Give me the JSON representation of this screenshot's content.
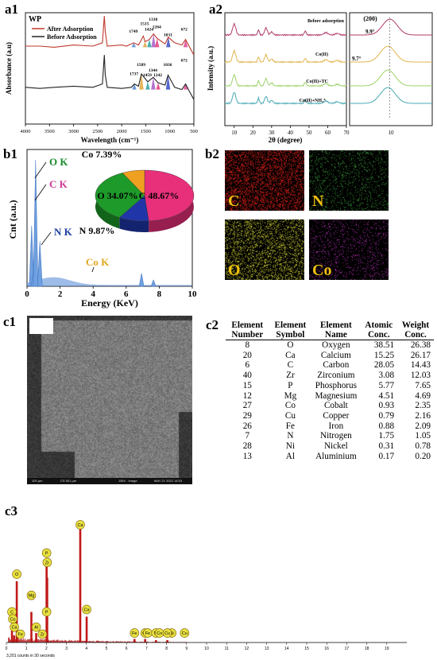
{
  "panels": {
    "a1": "a1",
    "a2": "a2",
    "b1": "b1",
    "b2": "b2",
    "c1": "c1",
    "c2": "c2",
    "c3": "c3"
  },
  "chart_data": [
    {
      "id": "a1",
      "type": "line",
      "title": "WP",
      "xlabel": "Wavelength (cm⁻¹)",
      "ylabel": "Absorbance (a.u)",
      "xlim": [
        4000,
        500
      ],
      "x_ticks": [
        4000,
        3500,
        3000,
        2500,
        2000,
        1500,
        1000,
        500
      ],
      "legend": [
        "After Adsorption",
        "Before Adsorption"
      ],
      "legend_position": "top-left",
      "series": [
        {
          "name": "After Adsorption",
          "color": "#c0392b",
          "x": [
            4000,
            3700,
            3400,
            3000,
            2600,
            2400,
            2360,
            2340,
            2300,
            2000,
            1900,
            1750,
            1650,
            1550,
            1515,
            1424,
            1338,
            1264,
            1100,
            1031,
            900,
            750,
            672,
            600,
            500
          ],
          "y": [
            0.7,
            0.7,
            0.69,
            0.71,
            0.7,
            0.73,
            0.97,
            0.83,
            0.7,
            0.71,
            0.7,
            0.73,
            0.71,
            0.79,
            0.74,
            0.76,
            0.81,
            0.77,
            0.72,
            0.78,
            0.73,
            0.71,
            0.76,
            0.7,
            0.62
          ]
        },
        {
          "name": "Before Adsorption",
          "color": "#222222",
          "x": [
            4000,
            3700,
            3400,
            3000,
            2600,
            2400,
            2360,
            2340,
            2300,
            2000,
            1800,
            1737,
            1650,
            1589,
            1459,
            1344,
            1242,
            1100,
            1036,
            900,
            750,
            672,
            600,
            500
          ],
          "y": [
            0.33,
            0.32,
            0.33,
            0.34,
            0.33,
            0.36,
            0.62,
            0.44,
            0.33,
            0.32,
            0.33,
            0.36,
            0.34,
            0.45,
            0.38,
            0.42,
            0.37,
            0.35,
            0.44,
            0.33,
            0.31,
            0.36,
            0.3,
            0.22
          ]
        }
      ],
      "annotations_after": [
        "1749",
        "1515",
        "1424",
        "1338",
        "1264",
        "1031",
        "672"
      ],
      "annotations_before": [
        "1589",
        "1737",
        "1459",
        "1344",
        "1242",
        "1036",
        "672"
      ]
    },
    {
      "id": "a2",
      "type": "line",
      "xlabel": "2θ (degree)",
      "ylabel": "Intensity (a.u.)",
      "xlim": [
        5,
        70
      ],
      "x_ticks": [
        10,
        20,
        30,
        40,
        50,
        60,
        70
      ],
      "inset_title": "(200)",
      "inset_labels": [
        "9.9°",
        "9.7°"
      ],
      "series": [
        {
          "name": "Before adsorption",
          "color": "#b23a6a",
          "offset": 3
        },
        {
          "name": "Co(II)",
          "color": "#e2b44c",
          "offset": 2
        },
        {
          "name": "Co(II)+TC",
          "color": "#9ed36a",
          "offset": 1
        },
        {
          "name": "Co(II)+NH₄⁺",
          "color": "#48a9b5",
          "offset": 0
        }
      ]
    },
    {
      "id": "b1",
      "type": "line",
      "xlabel": "Energy (KeV)",
      "ylabel": "Cnt (a.u.)",
      "xlim": [
        0,
        10
      ],
      "x_ticks": [
        0,
        2,
        4,
        6,
        8,
        10
      ],
      "peak_labels": [
        {
          "text": "O K",
          "color": "#1a8a2e"
        },
        {
          "text": "C K",
          "color": "#d03a95"
        },
        {
          "text": "N K",
          "color": "#1e3fa0"
        },
        {
          "text": "Co K",
          "color": "#e0a820"
        }
      ],
      "peaks": [
        {
          "x": 0.28,
          "y": 0.47
        },
        {
          "x": 0.39,
          "y": 0.12
        },
        {
          "x": 0.52,
          "y": 0.98
        },
        {
          "x": 0.78,
          "y": 0.35
        },
        {
          "x": 6.93,
          "y": 0.1
        },
        {
          "x": 7.65,
          "y": 0.05
        }
      ],
      "pie": {
        "type": "pie",
        "slices": [
          {
            "label": "C",
            "value": 48.67,
            "text": "C 48.67%",
            "color": "#e8307a"
          },
          {
            "label": "N",
            "value": 9.87,
            "text": "N 9.87%",
            "color": "#2036a8"
          },
          {
            "label": "O",
            "value": 34.07,
            "text": "O 34.07%",
            "color": "#1e9a2a"
          },
          {
            "label": "Co",
            "value": 7.39,
            "text": "Co 7.39%",
            "color": "#f0a020"
          }
        ]
      }
    },
    {
      "id": "c3",
      "type": "bar",
      "xlim": [
        0,
        20
      ],
      "x_ticks": [
        0,
        1,
        2,
        3,
        4,
        5,
        6,
        7,
        8,
        9,
        10,
        11,
        12,
        13,
        14,
        15,
        16,
        17,
        18,
        19
      ],
      "footer": "3,201 counts in 30 seconds",
      "peaks": [
        {
          "label": "C",
          "x": 0.28,
          "y": 0.12
        },
        {
          "label": "N",
          "x": 0.39,
          "y": 0.06
        },
        {
          "label": "O",
          "x": 0.52,
          "y": 0.52
        },
        {
          "label": "Mg",
          "x": 1.25,
          "y": 0.26
        },
        {
          "label": "Al",
          "x": 1.49,
          "y": 0.08
        },
        {
          "label": "Zr",
          "x": 2.04,
          "y": 0.55
        },
        {
          "label": "P",
          "x": 2.01,
          "y": 0.7
        },
        {
          "label": "Ca",
          "x": 3.69,
          "y": 1.0
        },
        {
          "label": "Ca",
          "x": 4.01,
          "y": 0.22
        },
        {
          "label": "Fe",
          "x": 6.4,
          "y": 0.03
        },
        {
          "label": "Co",
          "x": 6.93,
          "y": 0.03
        },
        {
          "label": "Ni",
          "x": 7.47,
          "y": 0.02
        },
        {
          "label": "Cu",
          "x": 8.04,
          "y": 0.02
        }
      ],
      "bubble_labels": [
        {
          "text": "Ca",
          "x": 3.69,
          "y": 0.96
        },
        {
          "text": "P",
          "x": 2.01,
          "y": 0.72
        },
        {
          "text": "Zr",
          "x": 2.04,
          "y": 0.64
        },
        {
          "text": "O",
          "x": 0.52,
          "y": 0.54
        },
        {
          "text": "Mg",
          "x": 1.25,
          "y": 0.36
        },
        {
          "text": "C",
          "x": 0.28,
          "y": 0.22
        },
        {
          "text": "Co",
          "x": 0.32,
          "y": 0.16
        },
        {
          "text": "Ca",
          "x": 0.4,
          "y": 0.09
        },
        {
          "text": "Fe",
          "x": 0.7,
          "y": 0.03
        },
        {
          "text": "Al",
          "x": 1.49,
          "y": 0.09
        },
        {
          "text": "Zr",
          "x": 1.8,
          "y": 0.03
        },
        {
          "text": "P",
          "x": 2.01,
          "y": 0.22
        },
        {
          "text": "Ca",
          "x": 4.01,
          "y": 0.24
        },
        {
          "text": "Fe",
          "x": 6.4,
          "y": 0.04
        },
        {
          "text": "Co",
          "x": 6.93,
          "y": 0.04
        },
        {
          "text": "Fe",
          "x": 7.06,
          "y": 0.04
        },
        {
          "text": "Ni",
          "x": 7.47,
          "y": 0.04
        },
        {
          "text": "Co",
          "x": 7.65,
          "y": 0.04
        },
        {
          "text": "Ni",
          "x": 8.26,
          "y": 0.04
        },
        {
          "text": "Cu",
          "x": 8.04,
          "y": 0.04
        },
        {
          "text": "Cu",
          "x": 8.9,
          "y": 0.04
        }
      ]
    }
  ],
  "b2_maps": [
    {
      "label": "C",
      "color": "#e0201a",
      "label_color": "#f0c010"
    },
    {
      "label": "N",
      "color": "#3a9a3a",
      "label_color": "#f0c010"
    },
    {
      "label": "O",
      "color": "#c8c830",
      "label_color": "#f0c010"
    },
    {
      "label": "Co",
      "color": "#b030b0",
      "label_color": "#f0c010"
    }
  ],
  "c1": {
    "scale": "100 µm",
    "footer_items": [
      "CS 501 µm",
      "15kV - image",
      "MAY 21 2022 14:53"
    ]
  },
  "c2_table": {
    "headers": [
      "Element Number",
      "Element Symbol",
      "Element Name",
      "Atomic Conc.",
      "Weight Conc."
    ],
    "rows": [
      [
        "8",
        "O",
        "Oxygen",
        "38.51",
        "26.38"
      ],
      [
        "20",
        "Ca",
        "Calcium",
        "15.25",
        "26.17"
      ],
      [
        "6",
        "C",
        "Carbon",
        "28.05",
        "14.43"
      ],
      [
        "40",
        "Zr",
        "Zirconium",
        "3.08",
        "12.03"
      ],
      [
        "15",
        "P",
        "Phosphorus",
        "5.77",
        "7.65"
      ],
      [
        "12",
        "Mg",
        "Magnesium",
        "4.51",
        "4.69"
      ],
      [
        "27",
        "Co",
        "Cobalt",
        "0.93",
        "2.35"
      ],
      [
        "29",
        "Cu",
        "Copper",
        "0.79",
        "2.16"
      ],
      [
        "26",
        "Fe",
        "Iron",
        "0.88",
        "2.09"
      ],
      [
        "7",
        "N",
        "Nitrogen",
        "1.75",
        "1.05"
      ],
      [
        "28",
        "Ni",
        "Nickel",
        "0.31",
        "0.78"
      ],
      [
        "13",
        "Al",
        "Aluminium",
        "0.17",
        "0.20"
      ]
    ]
  }
}
